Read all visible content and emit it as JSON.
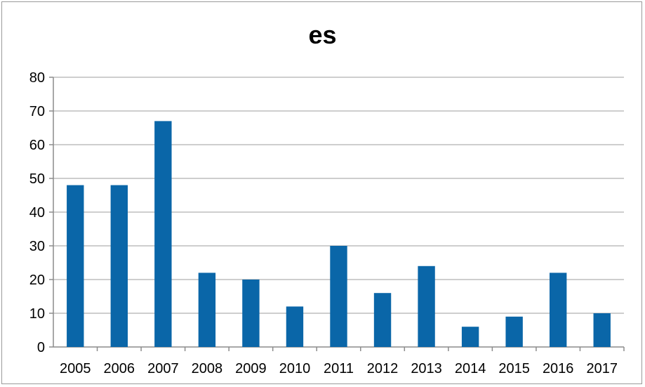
{
  "chart_data": {
    "type": "bar",
    "title": "es",
    "categories": [
      "2005",
      "2006",
      "2007",
      "2008",
      "2009",
      "2010",
      "2011",
      "2012",
      "2013",
      "2014",
      "2015",
      "2016",
      "2017"
    ],
    "values": [
      48,
      48,
      67,
      22,
      20,
      12,
      30,
      16,
      24,
      6,
      9,
      22,
      10
    ],
    "ylim": [
      0,
      80
    ],
    "yticks": [
      "0",
      "10",
      "20",
      "30",
      "40",
      "50",
      "60",
      "70",
      "80"
    ],
    "grid": true,
    "legend": "none",
    "bar_color": "#0a66a8",
    "grid_color": "#bdbdbd",
    "axis_color": "#8c8c8c"
  }
}
